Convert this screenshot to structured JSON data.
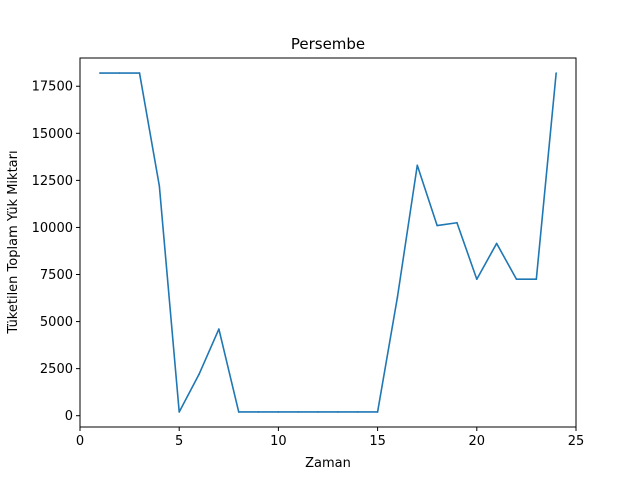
{
  "chart_data": {
    "type": "line",
    "title": "Persembe",
    "xlabel": "Zaman",
    "ylabel": "Tüketilen Toplam Yük Miktarı",
    "xlim": [
      0,
      25
    ],
    "ylim": [
      -600,
      19000
    ],
    "xticks": [
      0,
      5,
      10,
      15,
      20,
      25
    ],
    "yticks": [
      0,
      2500,
      5000,
      7500,
      10000,
      12500,
      15000,
      17500
    ],
    "grid": false,
    "series": [
      {
        "color": "#1f77b4",
        "x": [
          1,
          2,
          3,
          4,
          5,
          6,
          7,
          8,
          9,
          10,
          11,
          12,
          13,
          14,
          15,
          16,
          17,
          18,
          19,
          20,
          21,
          22,
          23,
          24
        ],
        "y": [
          18200,
          18200,
          18200,
          12200,
          200,
          2200,
          4600,
          200,
          200,
          200,
          200,
          200,
          200,
          200,
          200,
          6300,
          13300,
          10100,
          10250,
          7250,
          9150,
          7250,
          7250,
          18200
        ]
      }
    ]
  }
}
